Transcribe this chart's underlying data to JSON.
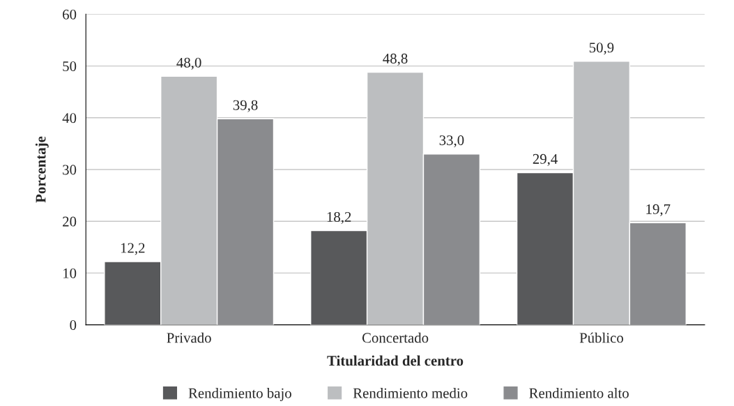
{
  "chart_data": {
    "type": "bar",
    "xlabel": "Titularidad del centro",
    "ylabel": "Porcentaje",
    "categories": [
      "Privado",
      "Concertado",
      "Público"
    ],
    "series": [
      {
        "name": "Rendimiento bajo",
        "color": "#58595b",
        "values": [
          12.2,
          18.2,
          29.4
        ],
        "value_labels": [
          "12,2",
          "18,2",
          "29,4"
        ]
      },
      {
        "name": "Rendimiento medio",
        "color": "#bcbec0",
        "values": [
          48.0,
          48.8,
          50.9
        ],
        "value_labels": [
          "48,0",
          "48,8",
          "50,9"
        ]
      },
      {
        "name": "Rendimiento alto",
        "color": "#8a8b8e",
        "values": [
          39.8,
          33.0,
          19.7
        ],
        "value_labels": [
          "39,8",
          "33,0",
          "19,7"
        ]
      }
    ],
    "ylim": [
      0,
      60
    ],
    "yticks": [
      0,
      10,
      20,
      30,
      40,
      50,
      60
    ],
    "grid": "y",
    "legend": "bottom"
  }
}
